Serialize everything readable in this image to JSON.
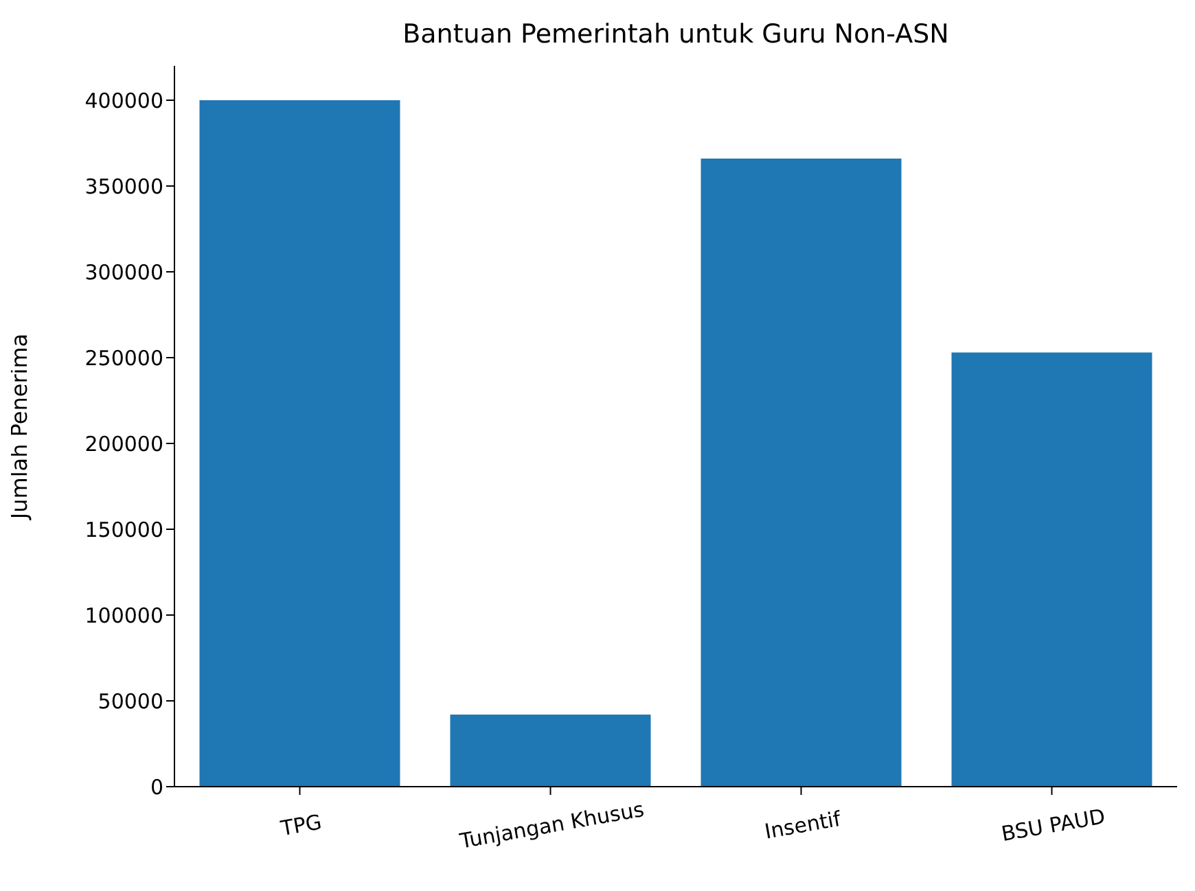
{
  "chart_data": {
    "type": "bar",
    "title": "Bantuan Pemerintah untuk Guru Non-ASN",
    "ylabel": "Jumlah Penerima",
    "categories": [
      "TPG",
      "Tunjangan Khusus",
      "Insentif",
      "BSU PAUD"
    ],
    "values": [
      400000,
      42000,
      366000,
      253000
    ],
    "color": "#1f77b4",
    "ylim": [
      0,
      420000
    ],
    "yticks": [
      0,
      50000,
      100000,
      150000,
      200000,
      250000,
      300000,
      350000,
      400000
    ],
    "grid": false
  }
}
